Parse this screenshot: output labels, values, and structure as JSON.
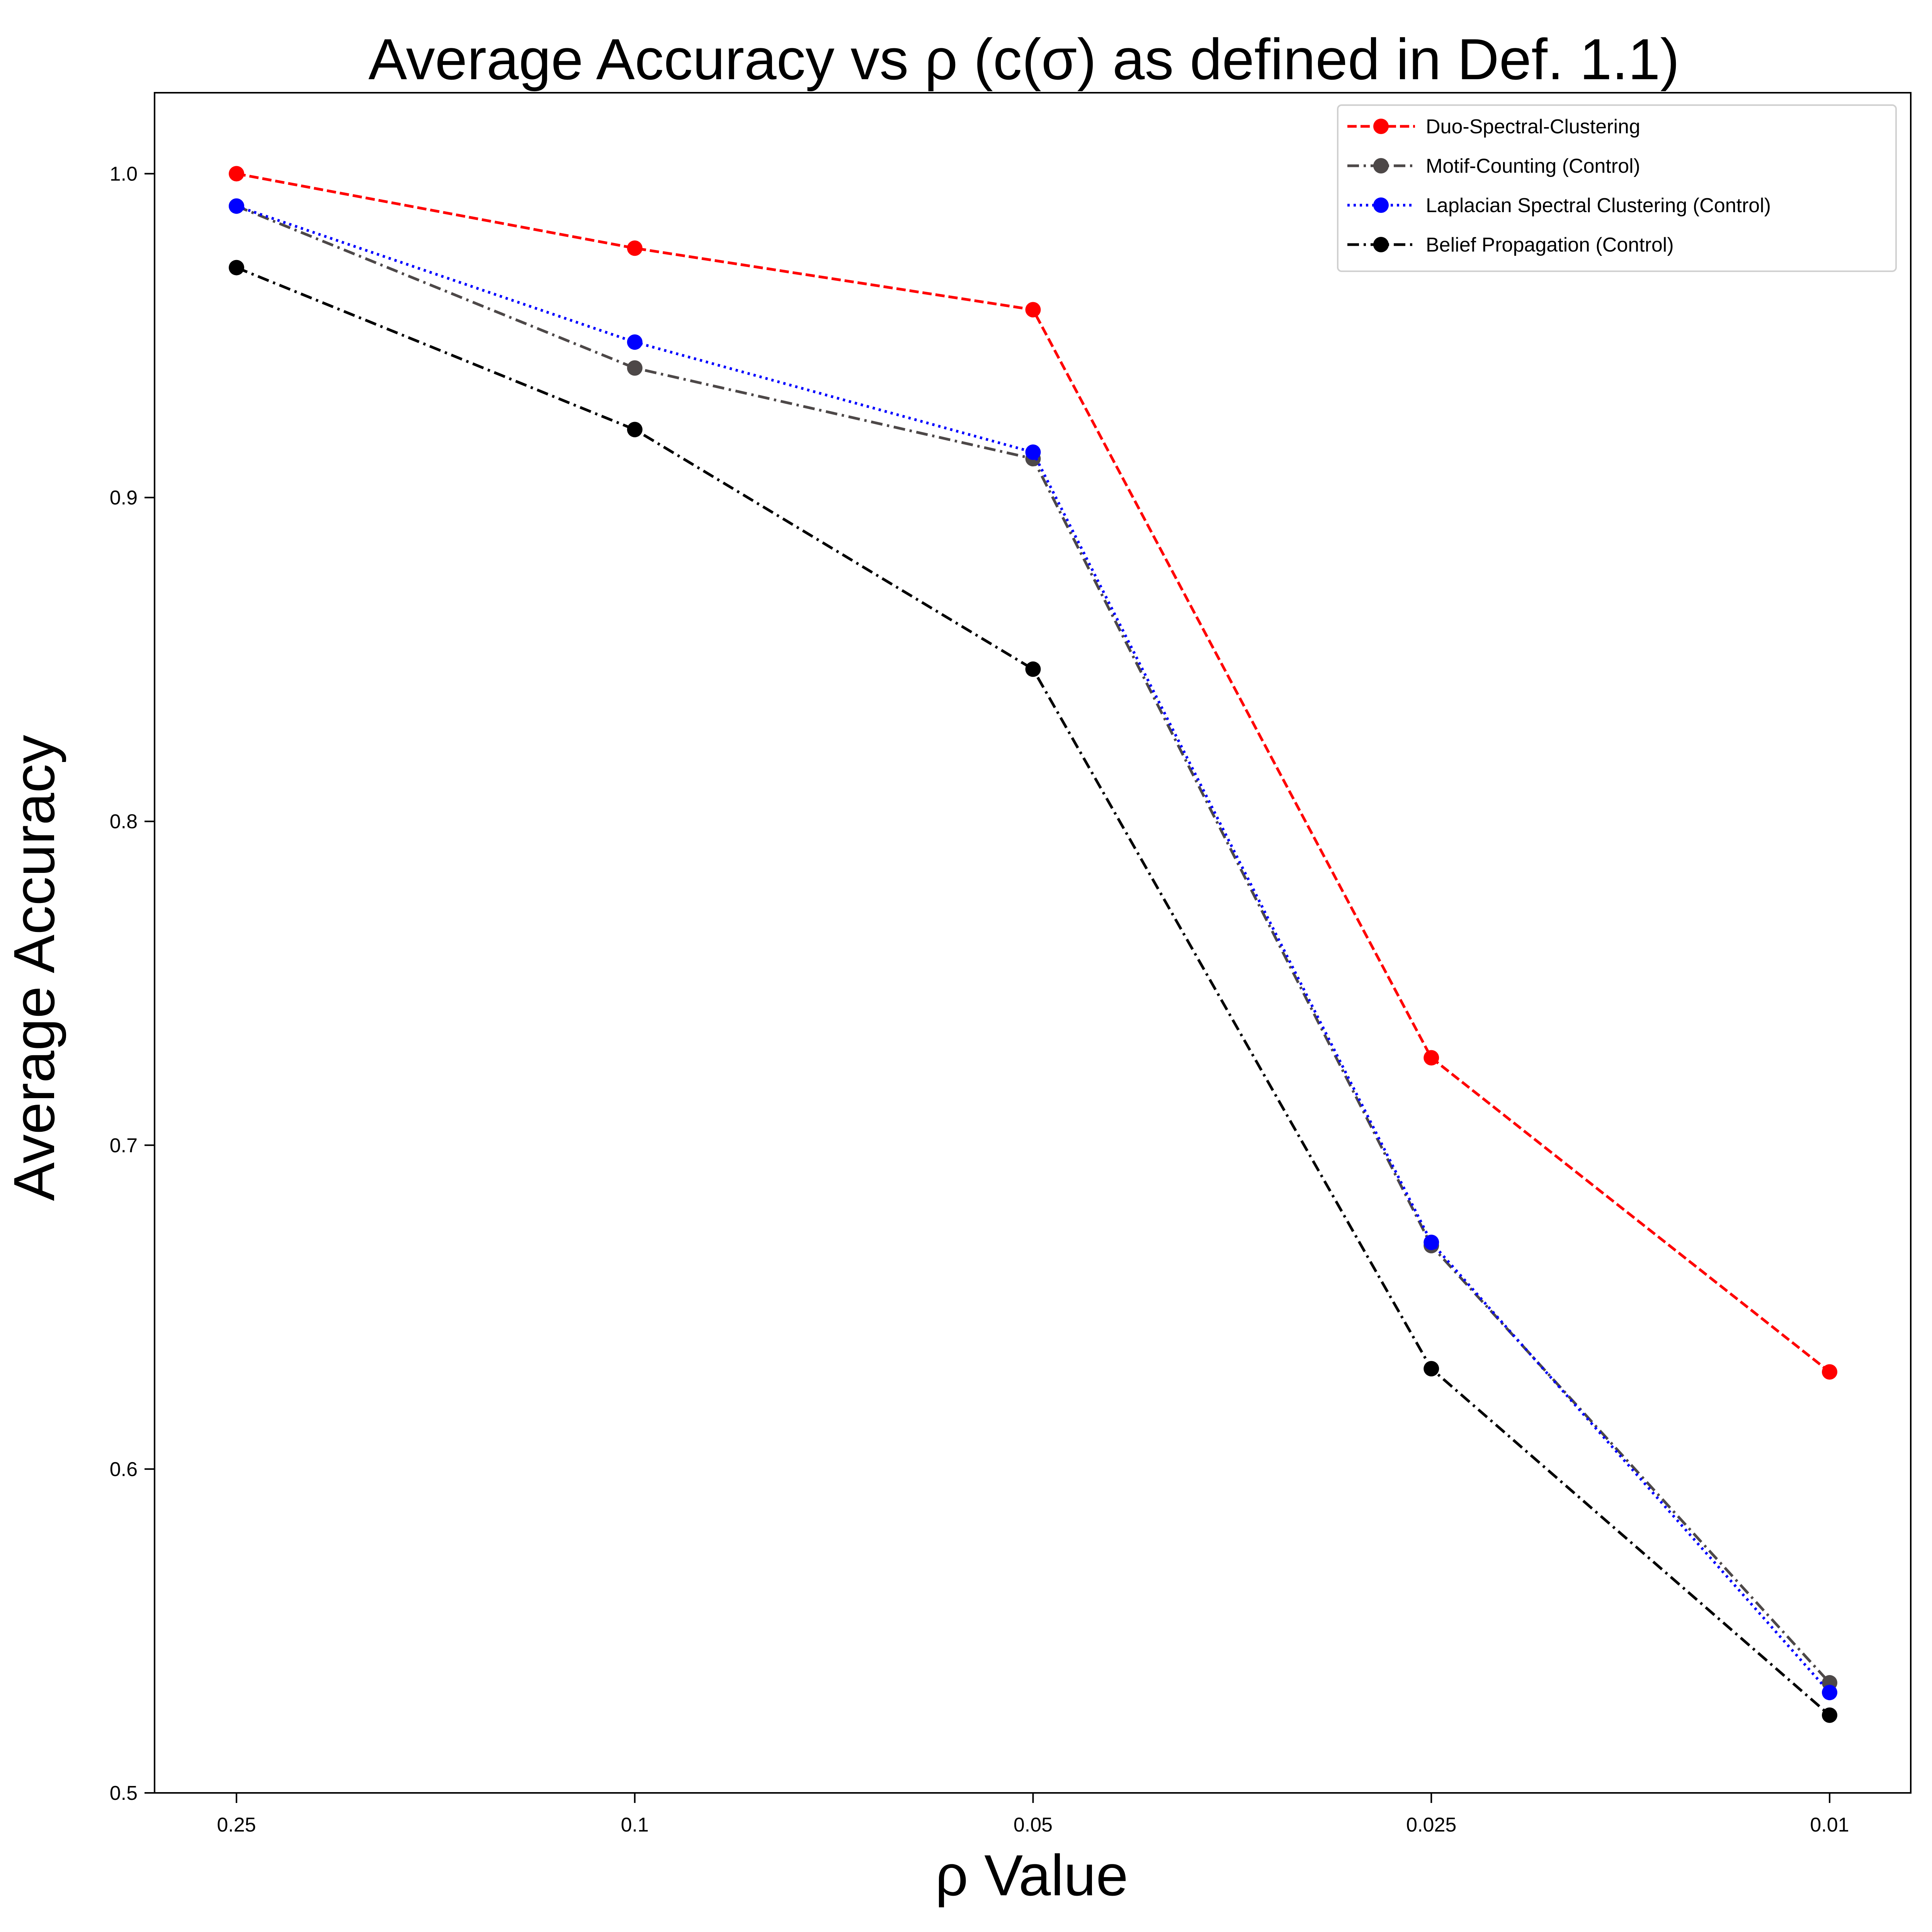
{
  "chart_data": {
    "type": "line",
    "title": "Average Accuracy vs ρ (c(σ) as defined in Def. 1.1)",
    "xlabel": "ρ Value",
    "ylabel": "Average Accuracy",
    "categories": [
      "0.25",
      "0.1",
      "0.05",
      "0.025",
      "0.01"
    ],
    "ylim": [
      0.5,
      1.025
    ],
    "yticks": [
      "0.5",
      "0.6",
      "0.7",
      "0.8",
      "0.9",
      "1.0"
    ],
    "grid": false,
    "legend_position": "top-right",
    "series": [
      {
        "name": "Duo-Spectral-Clustering",
        "values": [
          1.0,
          0.977,
          0.958,
          0.727,
          0.63
        ],
        "color": "#ff0000",
        "line_style": "dashed",
        "marker": "circle"
      },
      {
        "name": "Motif-Counting (Control)",
        "values": [
          0.99,
          0.94,
          0.912,
          0.669,
          0.534
        ],
        "color": "#4d4848",
        "line_style": "dashdot",
        "marker": "circle"
      },
      {
        "name": "Laplacian Spectral Clustering (Control)",
        "values": [
          0.99,
          0.948,
          0.914,
          0.67,
          0.531
        ],
        "color": "#0000ff",
        "line_style": "dotted",
        "marker": "circle"
      },
      {
        "name": "Belief Propagation (Control)",
        "values": [
          0.971,
          0.921,
          0.847,
          0.631,
          0.524
        ],
        "color": "#000000",
        "line_style": "dashdot",
        "marker": "circle"
      }
    ]
  }
}
